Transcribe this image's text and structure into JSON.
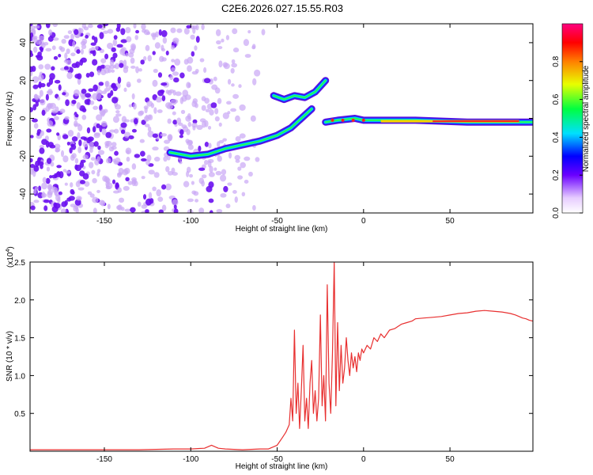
{
  "title": "C2E6.2026.027.15.55.R03",
  "chart_data": [
    {
      "type": "heatmap",
      "name": "spectrogram",
      "xlabel": "Height of straight line (km)",
      "ylabel": "Frequency (Hz)",
      "xlim": [
        -193,
        98
      ],
      "ylim": [
        -50,
        50
      ],
      "xticks": [
        -150,
        -100,
        -50,
        0,
        50
      ],
      "yticks": [
        -40,
        -20,
        0,
        20,
        40
      ],
      "colorbar": {
        "label": "Normalized spectral amplitude",
        "range": [
          0,
          1
        ],
        "ticks": [
          "0.0",
          "0.2",
          "0.4",
          "0.6",
          "0.8"
        ],
        "tick_values": [
          0,
          0.2,
          0.4,
          0.6,
          0.8
        ]
      },
      "traces": [
        {
          "name": "lower branch",
          "x": [
            -112,
            -100,
            -90,
            -80,
            -70,
            -60,
            -50,
            -42,
            -36,
            -30
          ],
          "y": [
            -18,
            -20,
            -19,
            -16,
            -14,
            -12,
            -9,
            -5,
            0,
            5
          ]
        },
        {
          "name": "upper branch",
          "x": [
            -52,
            -46,
            -40,
            -34,
            -28,
            -22
          ],
          "y": [
            12,
            10,
            12,
            11,
            14,
            20
          ]
        },
        {
          "name": "main line",
          "x": [
            -22,
            -15,
            -5,
            0,
            10,
            30,
            60,
            90,
            98
          ],
          "y": [
            -2,
            -1,
            0,
            -1,
            -1,
            -1,
            -2,
            -2,
            -2
          ]
        }
      ]
    },
    {
      "type": "line",
      "name": "snr",
      "xlabel": "Height of straight line (km)",
      "ylabel": "SNR (10 * v/v)",
      "scale_label": "(x10",
      "scale_exp": "4",
      "scale_close": ")",
      "xlim": [
        -193,
        98
      ],
      "ylim": [
        0,
        2.5
      ],
      "xticks": [
        -150,
        -100,
        -50,
        0,
        50
      ],
      "yticks": [
        0.5,
        1.0,
        1.5,
        2.0,
        2.5
      ],
      "ytick_labels": [
        "0.5",
        "1.0",
        "1.5",
        "2.0",
        "2.5"
      ],
      "line_color": "#e83030",
      "series": [
        {
          "name": "SNR",
          "x": [
            -193,
            -170,
            -150,
            -130,
            -110,
            -100,
            -92,
            -88,
            -84,
            -80,
            -70,
            -60,
            -55,
            -50,
            -47,
            -45,
            -43,
            -42,
            -41,
            -40,
            -39,
            -38,
            -37,
            -36,
            -35,
            -34,
            -33,
            -32,
            -31,
            -30,
            -29,
            -28,
            -27,
            -26,
            -25,
            -24,
            -23,
            -22,
            -21,
            -20,
            -19,
            -18,
            -17,
            -16,
            -15,
            -14,
            -13,
            -12,
            -11,
            -10,
            -9,
            -8,
            -7,
            -6,
            -5,
            -4,
            -3,
            -2,
            -1,
            0,
            2,
            4,
            6,
            8,
            10,
            12,
            15,
            18,
            20,
            22,
            25,
            28,
            30,
            35,
            40,
            45,
            50,
            55,
            60,
            65,
            70,
            75,
            80,
            85,
            88,
            90,
            92,
            94,
            96,
            98
          ],
          "y": [
            0.02,
            0.02,
            0.02,
            0.02,
            0.03,
            0.03,
            0.04,
            0.08,
            0.04,
            0.03,
            0.02,
            0.03,
            0.03,
            0.08,
            0.18,
            0.25,
            0.35,
            0.7,
            0.4,
            1.6,
            0.5,
            0.9,
            0.3,
            0.8,
            1.4,
            0.4,
            0.7,
            0.3,
            0.9,
            1.2,
            0.5,
            0.8,
            0.4,
            0.7,
            1.8,
            0.6,
            1.0,
            0.4,
            2.2,
            0.9,
            0.5,
            1.3,
            2.5,
            0.6,
            1.7,
            0.8,
            1.4,
            0.9,
            1.1,
            1.5,
            1.2,
            1.0,
            1.3,
            1.1,
            1.25,
            1.05,
            1.3,
            1.2,
            1.35,
            1.3,
            1.4,
            1.35,
            1.5,
            1.45,
            1.55,
            1.5,
            1.6,
            1.62,
            1.65,
            1.68,
            1.7,
            1.72,
            1.75,
            1.76,
            1.77,
            1.78,
            1.8,
            1.82,
            1.83,
            1.85,
            1.86,
            1.85,
            1.84,
            1.82,
            1.8,
            1.78,
            1.76,
            1.75,
            1.73,
            1.72
          ]
        }
      ]
    }
  ]
}
